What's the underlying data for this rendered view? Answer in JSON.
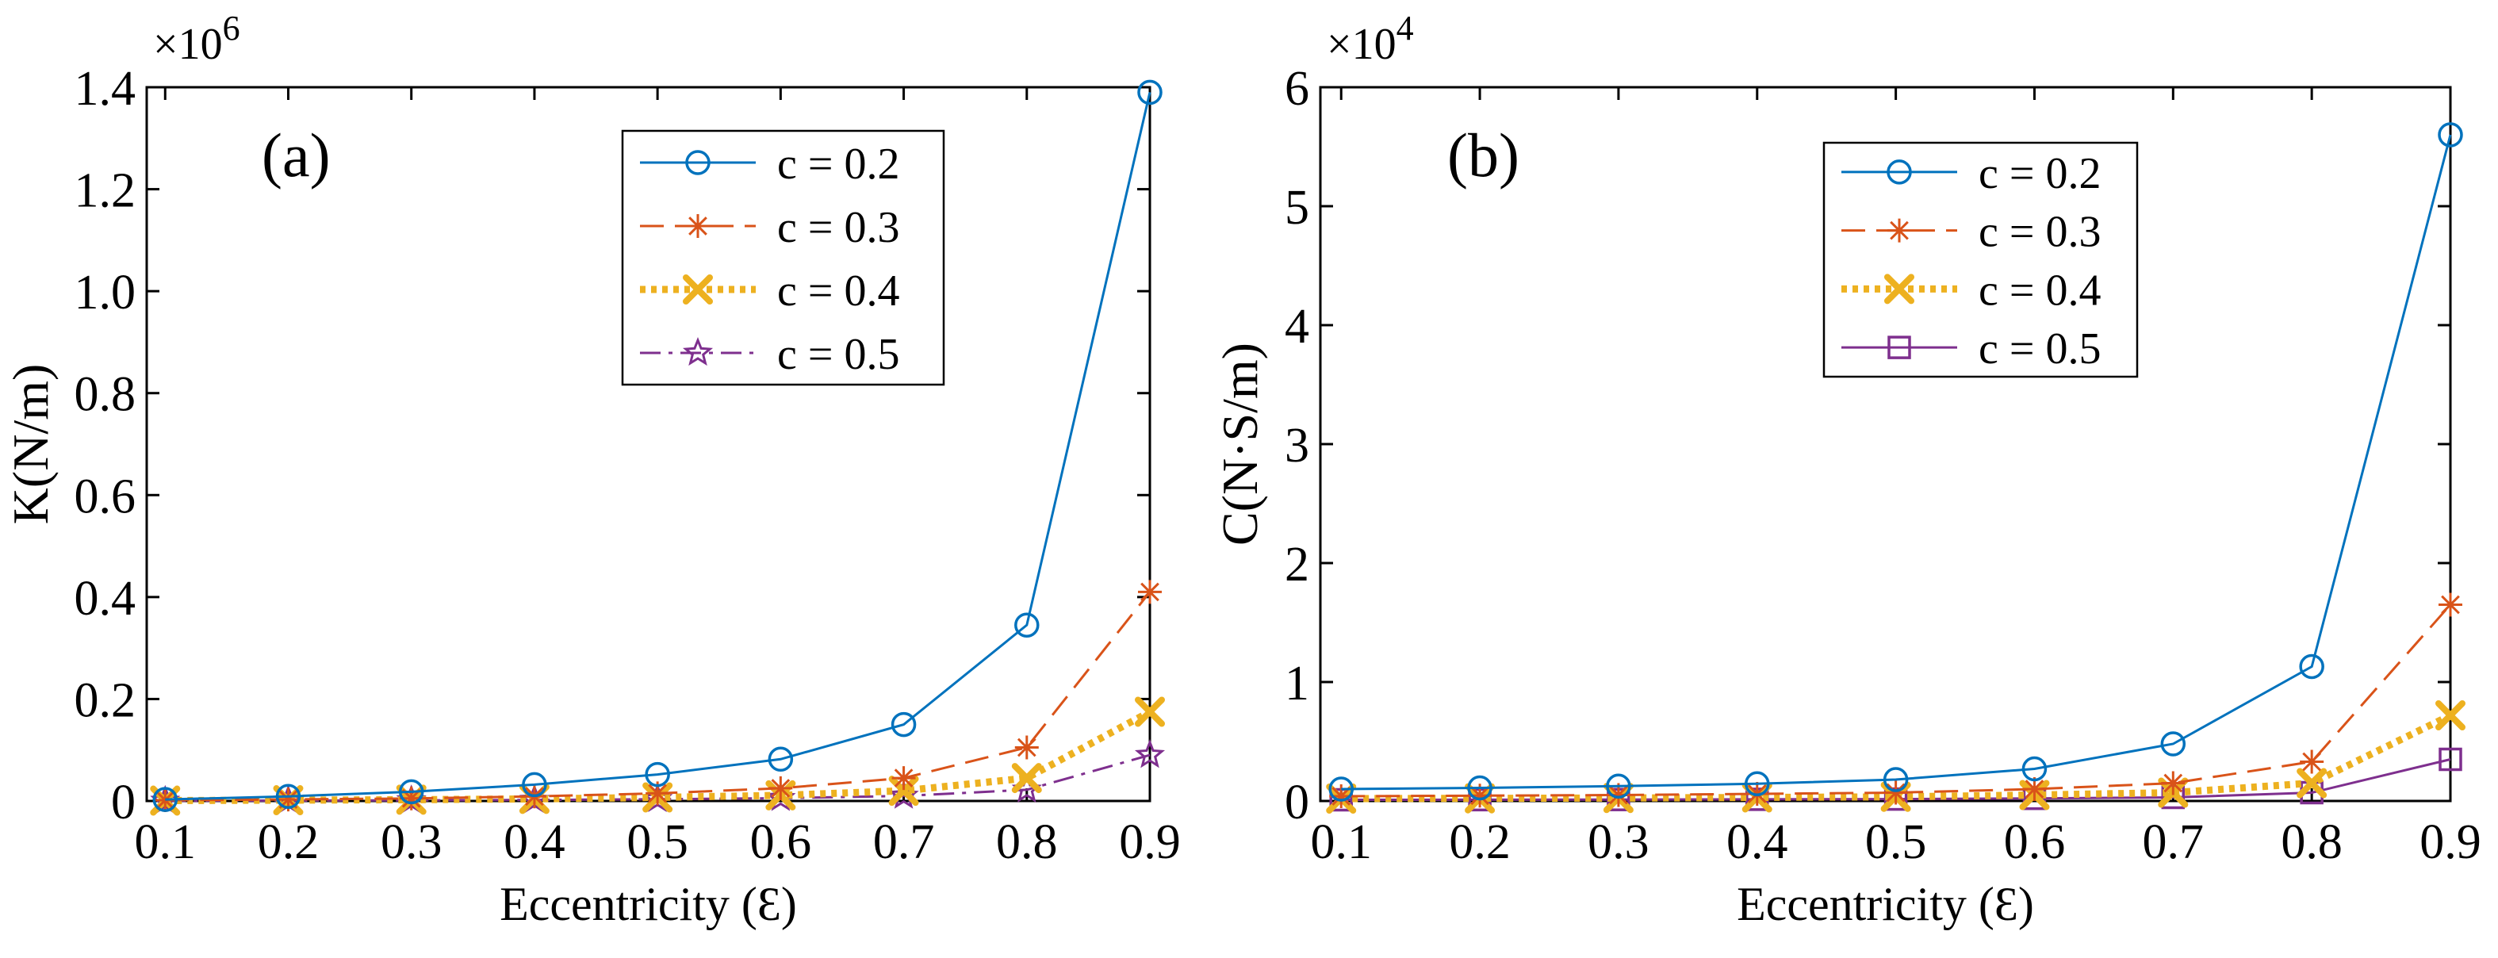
{
  "chart_data": [
    {
      "type": "line",
      "panel_label": "(a)",
      "title": "",
      "xlabel": "Eccentricity (Ɛ)",
      "ylabel": "K(N/m)",
      "exponent_label": "×10",
      "exponent_power": "6",
      "x": [
        0.1,
        0.2,
        0.3,
        0.4,
        0.5,
        0.6,
        0.7,
        0.8,
        0.9
      ],
      "xlim": [
        0.085,
        0.9
      ],
      "ylim": [
        0,
        1.4
      ],
      "xticks": [
        "0.1",
        "0.2",
        "0.3",
        "0.4",
        "0.5",
        "0.6",
        "0.7",
        "0.8",
        "0.9"
      ],
      "yticks": [
        "0",
        "0.2",
        "0.4",
        "0.6",
        "0.8",
        "1.0",
        "1.2",
        "1.4"
      ],
      "ytick_values": [
        0,
        0.2,
        0.4,
        0.6,
        0.8,
        1.0,
        1.2,
        1.4
      ],
      "legend_position": "top-right",
      "series": [
        {
          "name": "c = 0.2",
          "color": "#0072BD",
          "marker": "circle",
          "dash": "solid",
          "values": [
            0.003,
            0.009,
            0.018,
            0.032,
            0.052,
            0.082,
            0.15,
            0.345,
            1.39
          ]
        },
        {
          "name": "c = 0.3",
          "color": "#D95319",
          "marker": "asterisk",
          "dash": "dashed",
          "values": [
            0.0015,
            0.003,
            0.005,
            0.009,
            0.015,
            0.025,
            0.045,
            0.105,
            0.41
          ]
        },
        {
          "name": "c = 0.4",
          "color": "#EDB120",
          "marker": "x",
          "dash": "dotted",
          "values": [
            0.0007,
            0.0015,
            0.0025,
            0.004,
            0.007,
            0.011,
            0.02,
            0.045,
            0.175
          ]
        },
        {
          "name": "c = 0.5",
          "color": "#7E2F8E",
          "marker": "star",
          "dash": "dashdot",
          "values": [
            0.0003,
            0.0007,
            0.0012,
            0.002,
            0.0035,
            0.0055,
            0.01,
            0.022,
            0.09
          ]
        }
      ]
    },
    {
      "type": "line",
      "panel_label": "(b)",
      "title": "",
      "xlabel": "Eccentricity (Ɛ)",
      "ylabel": "C(N·S/m)",
      "exponent_label": "×10",
      "exponent_power": "4",
      "x": [
        0.1,
        0.2,
        0.3,
        0.4,
        0.5,
        0.6,
        0.7,
        0.8,
        0.9
      ],
      "xlim": [
        0.085,
        0.9
      ],
      "ylim": [
        0,
        6
      ],
      "xticks": [
        "0.1",
        "0.2",
        "0.3",
        "0.4",
        "0.5",
        "0.6",
        "0.7",
        "0.8",
        "0.9"
      ],
      "yticks": [
        "0",
        "1",
        "2",
        "3",
        "4",
        "5",
        "6"
      ],
      "ytick_values": [
        0,
        1,
        2,
        3,
        4,
        5,
        6
      ],
      "legend_position": "top-right",
      "series": [
        {
          "name": "c = 0.2",
          "color": "#0072BD",
          "marker": "circle",
          "dash": "solid",
          "values": [
            0.1,
            0.11,
            0.125,
            0.145,
            0.18,
            0.27,
            0.48,
            1.13,
            5.6
          ]
        },
        {
          "name": "c = 0.3",
          "color": "#D95319",
          "marker": "asterisk",
          "dash": "dashed",
          "values": [
            0.04,
            0.045,
            0.05,
            0.06,
            0.07,
            0.1,
            0.15,
            0.33,
            1.65
          ]
        },
        {
          "name": "c = 0.4",
          "color": "#EDB120",
          "marker": "x",
          "dash": "dotted",
          "values": [
            0.02,
            0.022,
            0.025,
            0.03,
            0.035,
            0.05,
            0.07,
            0.15,
            0.72
          ]
        },
        {
          "name": "c = 0.5",
          "color": "#7E2F8E",
          "marker": "square",
          "dash": "solid",
          "values": [
            0.01,
            0.011,
            0.012,
            0.014,
            0.016,
            0.022,
            0.03,
            0.07,
            0.35
          ]
        }
      ]
    }
  ]
}
